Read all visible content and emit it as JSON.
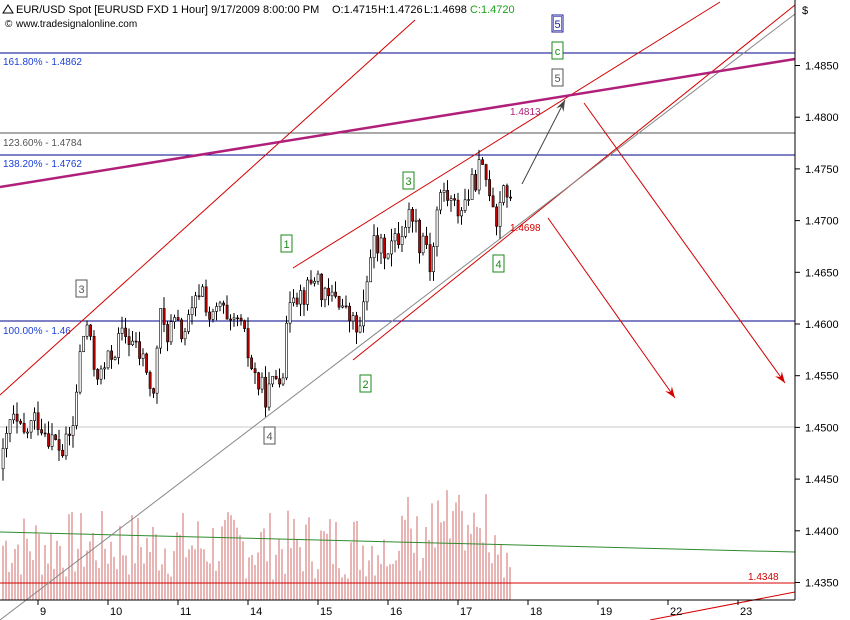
{
  "header": {
    "title": "EUR/USD Spot [EURUSD FXD  1 Hour] 9/17/2009 8:00:00 PM",
    "ohlc": {
      "open": "O:1.4715",
      "high": "H:1.4726",
      "low": "L:1.4698",
      "close": "C:1.4720"
    },
    "source": "www.tradesignalonline.com",
    "currency_symbol": "$"
  },
  "colors": {
    "up": "#ffffff",
    "down": "#c00000",
    "outline": "#000000",
    "fib": "#00008b",
    "channel": "#d40000",
    "purple": "#b0207a",
    "gray": "#777777",
    "ma": "#2e8b2e",
    "volume": "#e8b4b4",
    "close": "#1aa11a"
  },
  "chart_data": {
    "type": "candlestick",
    "title": "EUR/USD Spot [EURUSD FXD  1 Hour] 9/17/2009 8:00:00 PM",
    "x_ticks": [
      "9",
      "10",
      "11",
      "14",
      "15",
      "16",
      "17",
      "18",
      "19",
      "22",
      "23"
    ],
    "y_ticks": [
      "1.4850",
      "1.4800",
      "1.4750",
      "1.4700",
      "1.4650",
      "1.4600",
      "1.4550",
      "1.4500",
      "1.4450",
      "1.4400",
      "1.4350"
    ],
    "ylim": [
      1.4345,
      1.4895
    ],
    "fib_levels": [
      {
        "label": "161.80% - 1.4862",
        "value": 1.4862
      },
      {
        "label": "138.20% - 1.4762",
        "value": 1.4762
      },
      {
        "label": "123.60% - 1.4784",
        "value": 1.4784
      },
      {
        "label": "100.00% - 1.46",
        "value": 1.46
      },
      {
        "label": "1.4500",
        "value": 1.45
      },
      {
        "label": "1.4348",
        "value": 1.4348
      }
    ],
    "annotations": [
      {
        "label": "1.4813",
        "value": 1.4813
      },
      {
        "label": "1.4698",
        "value": 1.4698
      }
    ],
    "wave_labels": [
      {
        "label": "3",
        "style": "gray"
      },
      {
        "label": "4",
        "style": "gray"
      },
      {
        "label": "1",
        "style": "green"
      },
      {
        "label": "2",
        "style": "green"
      },
      {
        "label": "3",
        "style": "green"
      },
      {
        "label": "4",
        "style": "green"
      },
      {
        "label": "5",
        "style": "gray"
      },
      {
        "label": "c",
        "style": "green"
      },
      {
        "label": "5",
        "style": "blue"
      }
    ],
    "price_path": [
      [
        0,
        1.446
      ],
      [
        10,
        1.451
      ],
      [
        22,
        1.449
      ],
      [
        35,
        1.451
      ],
      [
        50,
        1.449
      ],
      [
        62,
        1.4475
      ],
      [
        72,
        1.45
      ],
      [
        80,
        1.458
      ],
      [
        86,
        1.46
      ],
      [
        92,
        1.456
      ],
      [
        100,
        1.455
      ],
      [
        110,
        1.457
      ],
      [
        122,
        1.459
      ],
      [
        130,
        1.4585
      ],
      [
        138,
        1.457
      ],
      [
        145,
        1.456
      ],
      [
        152,
        1.452
      ],
      [
        158,
        1.461
      ],
      [
        165,
        1.459
      ],
      [
        172,
        1.46
      ],
      [
        182,
        1.459
      ],
      [
        192,
        1.461
      ],
      [
        200,
        1.464
      ],
      [
        210,
        1.46
      ],
      [
        220,
        1.462
      ],
      [
        228,
        1.459
      ],
      [
        236,
        1.4605
      ],
      [
        242,
        1.459
      ],
      [
        250,
        1.456
      ],
      [
        258,
        1.454
      ],
      [
        266,
        1.453
      ],
      [
        275,
        1.455
      ],
      [
        283,
        1.456
      ],
      [
        290,
        1.464
      ],
      [
        296,
        1.463
      ],
      [
        305,
        1.463
      ],
      [
        315,
        1.465
      ],
      [
        325,
        1.462
      ],
      [
        335,
        1.463
      ],
      [
        345,
        1.461
      ],
      [
        352,
        1.46
      ],
      [
        358,
        1.459
      ],
      [
        364,
        1.462
      ],
      [
        370,
        1.468
      ],
      [
        378,
        1.467
      ],
      [
        386,
        1.4675
      ],
      [
        396,
        1.468
      ],
      [
        405,
        1.47
      ],
      [
        412,
        1.471
      ],
      [
        418,
        1.468
      ],
      [
        424,
        1.469
      ],
      [
        430,
        1.465
      ],
      [
        436,
        1.471
      ],
      [
        442,
        1.473
      ],
      [
        448,
        1.472
      ],
      [
        455,
        1.471
      ],
      [
        462,
        1.4715
      ],
      [
        470,
        1.473
      ],
      [
        478,
        1.475
      ],
      [
        485,
        1.474
      ],
      [
        490,
        1.473
      ],
      [
        496,
        1.47
      ],
      [
        502,
        1.474
      ],
      [
        508,
        1.472
      ],
      [
        511,
        1.4705
      ]
    ]
  }
}
